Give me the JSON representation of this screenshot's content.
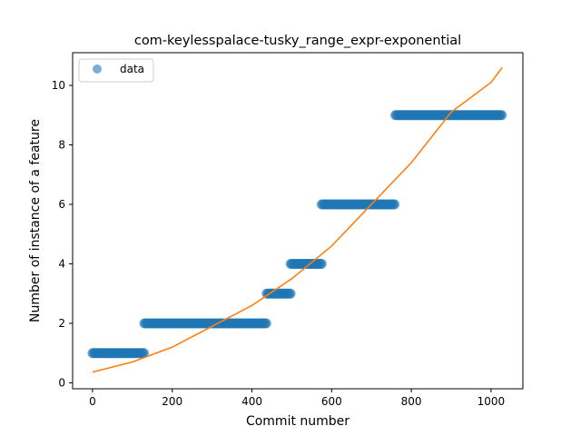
{
  "chart_data": {
    "type": "scatter",
    "title": "com-keylesspalace-tusky_range_expr-exponential",
    "xlabel": "Commit number",
    "ylabel": "Number of instance of a feature",
    "xlim": [
      -50,
      1080
    ],
    "ylim": [
      -0.2,
      11.1
    ],
    "xticks": [
      0,
      200,
      400,
      600,
      800,
      1000
    ],
    "yticks": [
      0,
      2,
      4,
      6,
      8,
      10
    ],
    "grid": false,
    "legend": {
      "position": "top-left",
      "entries": [
        "data"
      ]
    },
    "series": [
      {
        "name": "data",
        "kind": "points",
        "color": "#1f77b4",
        "alpha": 0.6,
        "segments": [
          {
            "x_start": 0,
            "x_end": 130,
            "y": 1
          },
          {
            "x_start": 130,
            "x_end": 437,
            "y": 2
          },
          {
            "x_start": 437,
            "x_end": 497,
            "y": 3
          },
          {
            "x_start": 497,
            "x_end": 575,
            "y": 4
          },
          {
            "x_start": 575,
            "x_end": 760,
            "y": 6
          },
          {
            "x_start": 760,
            "x_end": 1028,
            "y": 9
          }
        ]
      },
      {
        "kind": "line",
        "color": "#ff7f0e",
        "x": [
          0,
          100,
          200,
          300,
          400,
          500,
          600,
          700,
          800,
          900,
          1000,
          1028
        ],
        "y": [
          0.36,
          0.7,
          1.2,
          1.9,
          2.6,
          3.5,
          4.6,
          6.0,
          7.4,
          9.1,
          10.1,
          10.6
        ]
      }
    ]
  }
}
